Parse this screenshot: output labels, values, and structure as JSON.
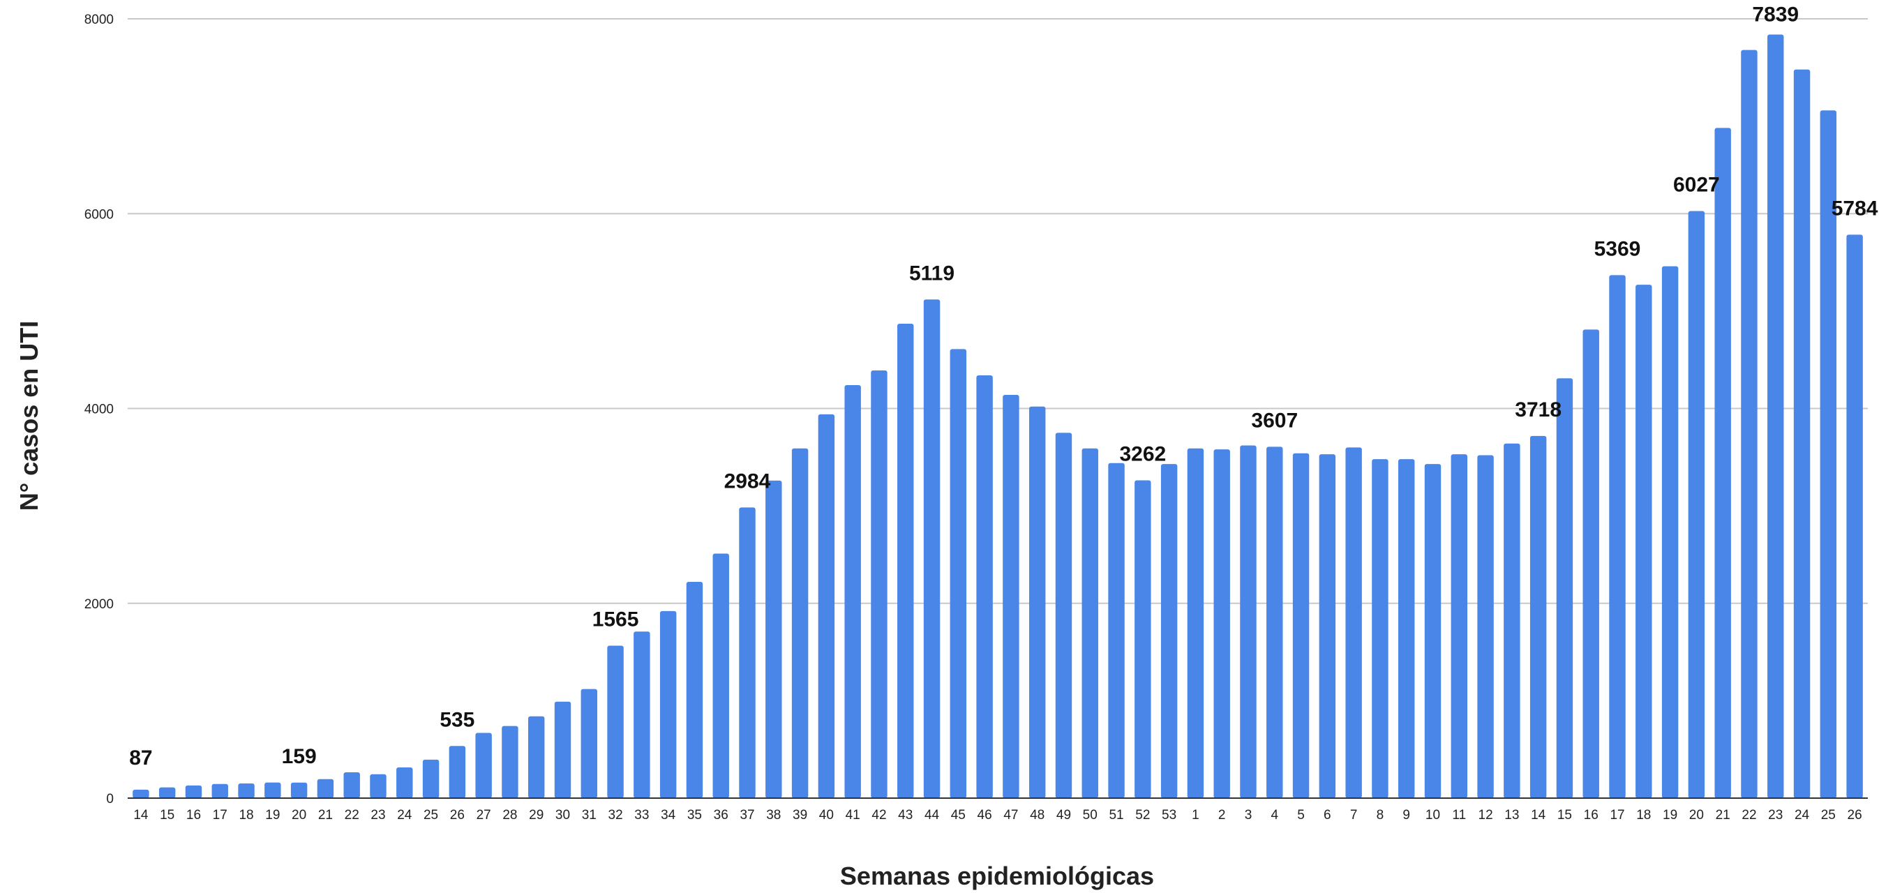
{
  "chart_data": {
    "type": "bar",
    "xlabel": "Semanas epidemiológicas",
    "ylabel": "N° casos en UTI",
    "ylim": [
      0,
      8000
    ],
    "yticks": [
      0,
      2000,
      4000,
      6000,
      8000
    ],
    "grid": true,
    "bar_color": "#4a86e8",
    "categories": [
      "14",
      "15",
      "16",
      "17",
      "18",
      "19",
      "20",
      "21",
      "22",
      "23",
      "24",
      "25",
      "26",
      "27",
      "28",
      "29",
      "30",
      "31",
      "32",
      "33",
      "34",
      "35",
      "36",
      "37",
      "38",
      "39",
      "40",
      "41",
      "42",
      "43",
      "44",
      "45",
      "46",
      "47",
      "48",
      "49",
      "50",
      "51",
      "52",
      "53",
      "1",
      "2",
      "3",
      "4",
      "5",
      "6",
      "7",
      "8",
      "9",
      "10",
      "11",
      "12",
      "13",
      "14",
      "15",
      "16",
      "17",
      "18",
      "19",
      "20",
      "21",
      "22",
      "23",
      "24",
      "25",
      "26"
    ],
    "values": [
      87,
      110,
      130,
      145,
      150,
      160,
      159,
      195,
      265,
      245,
      315,
      395,
      535,
      670,
      740,
      840,
      990,
      1120,
      1565,
      1710,
      1920,
      2220,
      2510,
      2984,
      3260,
      3590,
      3940,
      4240,
      4390,
      4870,
      5119,
      4610,
      4340,
      4140,
      4020,
      3750,
      3590,
      3440,
      3262,
      3430,
      3590,
      3580,
      3620,
      3607,
      3540,
      3530,
      3600,
      3480,
      3480,
      3430,
      3530,
      3520,
      3640,
      3718,
      4310,
      4810,
      5369,
      5270,
      5460,
      6027,
      6880,
      7680,
      7839,
      7480,
      7060,
      5784
    ],
    "data_labels": [
      {
        "index": 0,
        "text": "87"
      },
      {
        "index": 6,
        "text": "159"
      },
      {
        "index": 12,
        "text": "535"
      },
      {
        "index": 18,
        "text": "1565"
      },
      {
        "index": 23,
        "text": "2984"
      },
      {
        "index": 30,
        "text": "5119"
      },
      {
        "index": 38,
        "text": "3262"
      },
      {
        "index": 43,
        "text": "3607"
      },
      {
        "index": 53,
        "text": "3718"
      },
      {
        "index": 56,
        "text": "5369"
      },
      {
        "index": 59,
        "text": "6027"
      },
      {
        "index": 62,
        "text": "7839"
      },
      {
        "index": 65,
        "text": "5784"
      }
    ]
  }
}
